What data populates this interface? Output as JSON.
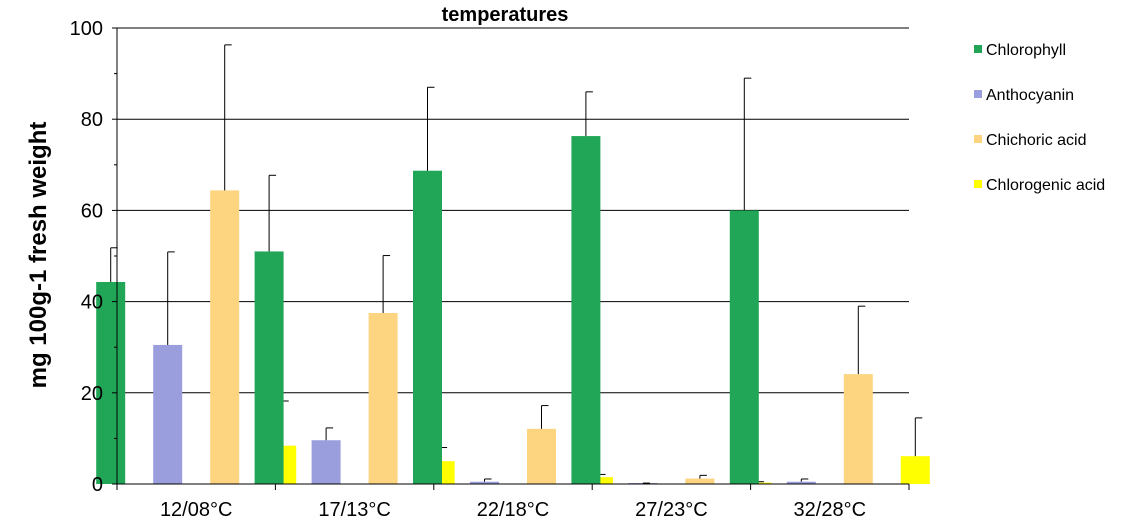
{
  "chart_data": {
    "type": "bar",
    "title": "temperatures",
    "xlabel": "",
    "ylabel": "mg 100g-1 fresh weight",
    "ylim": [
      0,
      100
    ],
    "yticks": [
      0,
      20,
      40,
      60,
      80,
      100
    ],
    "grid": true,
    "legend_position": "right",
    "categories": [
      "12/08°C",
      "17/13°C",
      "22/18°C",
      "27/23°C",
      "32/28°C"
    ],
    "series": [
      {
        "name": "Chlorophyll",
        "color": "#21a657",
        "values": [
          44.3,
          51.0,
          68.7,
          76.3,
          60.0
        ],
        "errors": [
          7.5,
          16.7,
          18.3,
          9.7,
          29.0
        ]
      },
      {
        "name": "Anthocyanin",
        "color": "#9b9edd",
        "values": [
          30.5,
          9.6,
          0.5,
          0.2,
          0.5
        ],
        "errors": [
          20.4,
          2.7,
          0.6,
          0.0,
          0.6
        ]
      },
      {
        "name": "Chichoric acid",
        "color": "#fdd580",
        "values": [
          64.4,
          37.5,
          12.1,
          1.2,
          24.1
        ],
        "errors": [
          31.9,
          12.6,
          5.1,
          0.7,
          14.9
        ]
      },
      {
        "name": "Chlorogenic acid",
        "color": "#ffff00",
        "values": [
          8.4,
          5.0,
          1.5,
          0.3,
          6.1
        ],
        "errors": [
          9.8,
          3.0,
          0.6,
          0.2,
          8.4
        ]
      }
    ]
  }
}
